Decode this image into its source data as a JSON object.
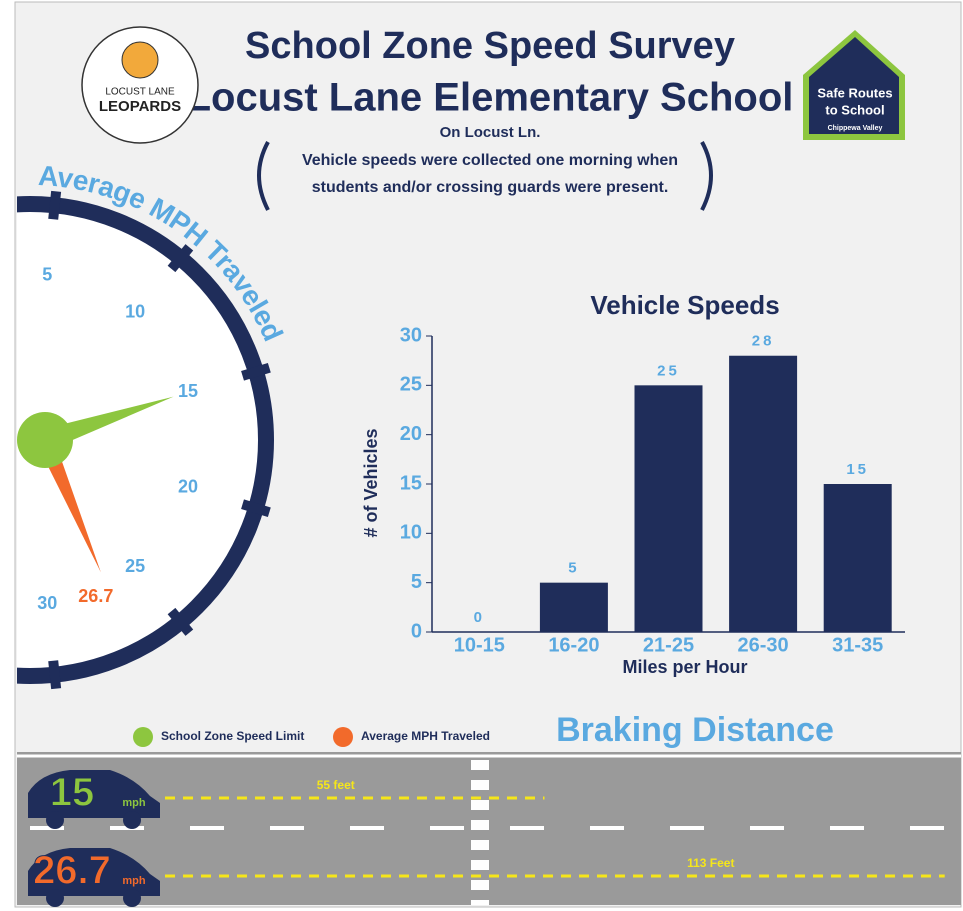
{
  "header": {
    "title_line1": "School Zone Speed Survey",
    "title_line2": "Locust Lane Elementary School",
    "location": "On Locust Ln.",
    "note_line1": "Vehicle speeds were collected one morning when",
    "note_line2": "students and/or crossing guards were present."
  },
  "logo_left": {
    "line1": "LOCUST LANE",
    "line2": "LEOPARDS"
  },
  "logo_right": {
    "line1": "Safe Routes",
    "line2": "to School",
    "line3": "Chippewa Valley"
  },
  "gauge": {
    "title": "Average MPH Traveled",
    "ticks": [
      5,
      10,
      15,
      20,
      25,
      30
    ],
    "speed_limit": 15,
    "average": 26.7,
    "speed_limit_color": "#8dc63f",
    "average_color": "#f26a2b"
  },
  "legend": [
    {
      "label": "School Zone Speed Limit",
      "color": "#8dc63f"
    },
    {
      "label": "Average MPH Traveled",
      "color": "#f26a2b"
    }
  ],
  "chart_data": {
    "type": "bar",
    "title": "Vehicle Speeds",
    "x_label": "Miles per Hour",
    "y_label": "# of Vehicles",
    "categories": [
      "10-15",
      "16-20",
      "21-25",
      "26-30",
      "31-35"
    ],
    "values": [
      0,
      5,
      25,
      28,
      15
    ],
    "color": "#1f2d5a",
    "ylim": [
      0,
      30
    ],
    "yticks": [
      0,
      5,
      10,
      15,
      20,
      25,
      30
    ]
  },
  "braking": {
    "title": "Braking Distance",
    "unit": "mph",
    "rows": [
      {
        "speed": 15,
        "distance": 55,
        "distance_label": "55 feet",
        "color": "#8dc63f"
      },
      {
        "speed": 26.7,
        "distance": 113,
        "distance_label": "113 Feet",
        "color": "#f26a2b"
      }
    ]
  }
}
